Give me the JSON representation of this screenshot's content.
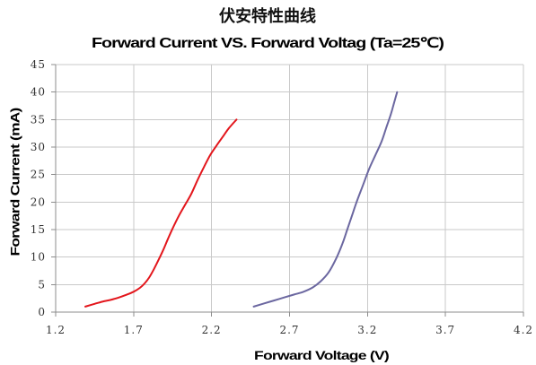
{
  "chart_data": {
    "type": "line",
    "title": "伏安特性曲线",
    "subtitle": "Forward Current VS. Forward Voltag (Ta=25℃)",
    "xlabel": "Forward Voltage (V)",
    "ylabel": "Forward Current (mA)",
    "xlim": [
      1.2,
      4.2
    ],
    "ylim": [
      0,
      45
    ],
    "x_ticks": [
      "1.2",
      "1.7",
      "2.2",
      "2.7",
      "3.2",
      "3.7",
      "4.2"
    ],
    "y_ticks": [
      "0",
      "5",
      "10",
      "15",
      "20",
      "25",
      "30",
      "35",
      "40",
      "45"
    ],
    "grid": true,
    "legend": "none",
    "series": [
      {
        "color": "#e3161c",
        "points": [
          [
            1.39,
            1.0
          ],
          [
            1.45,
            1.5
          ],
          [
            1.5,
            1.9
          ],
          [
            1.55,
            2.2
          ],
          [
            1.6,
            2.6
          ],
          [
            1.65,
            3.1
          ],
          [
            1.7,
            3.7
          ],
          [
            1.74,
            4.4
          ],
          [
            1.77,
            5.2
          ],
          [
            1.8,
            6.3
          ],
          [
            1.83,
            7.8
          ],
          [
            1.86,
            9.5
          ],
          [
            1.89,
            11.3
          ],
          [
            1.92,
            13.3
          ],
          [
            1.95,
            15.2
          ],
          [
            1.99,
            17.5
          ],
          [
            2.03,
            19.5
          ],
          [
            2.07,
            21.5
          ],
          [
            2.11,
            24.0
          ],
          [
            2.15,
            26.3
          ],
          [
            2.19,
            28.5
          ],
          [
            2.23,
            30.2
          ],
          [
            2.27,
            31.8
          ],
          [
            2.31,
            33.4
          ],
          [
            2.36,
            35.0
          ]
        ]
      },
      {
        "color": "#6b67a0",
        "points": [
          [
            2.47,
            1.0
          ],
          [
            2.54,
            1.6
          ],
          [
            2.6,
            2.1
          ],
          [
            2.67,
            2.7
          ],
          [
            2.73,
            3.2
          ],
          [
            2.79,
            3.7
          ],
          [
            2.85,
            4.5
          ],
          [
            2.9,
            5.6
          ],
          [
            2.95,
            7.2
          ],
          [
            3.0,
            9.8
          ],
          [
            3.04,
            12.5
          ],
          [
            3.07,
            15.0
          ],
          [
            3.1,
            17.5
          ],
          [
            3.13,
            20.0
          ],
          [
            3.17,
            23.0
          ],
          [
            3.21,
            26.0
          ],
          [
            3.25,
            28.5
          ],
          [
            3.29,
            31.0
          ],
          [
            3.32,
            33.5
          ],
          [
            3.35,
            36.0
          ],
          [
            3.37,
            38.0
          ],
          [
            3.39,
            40.0
          ]
        ]
      }
    ]
  }
}
